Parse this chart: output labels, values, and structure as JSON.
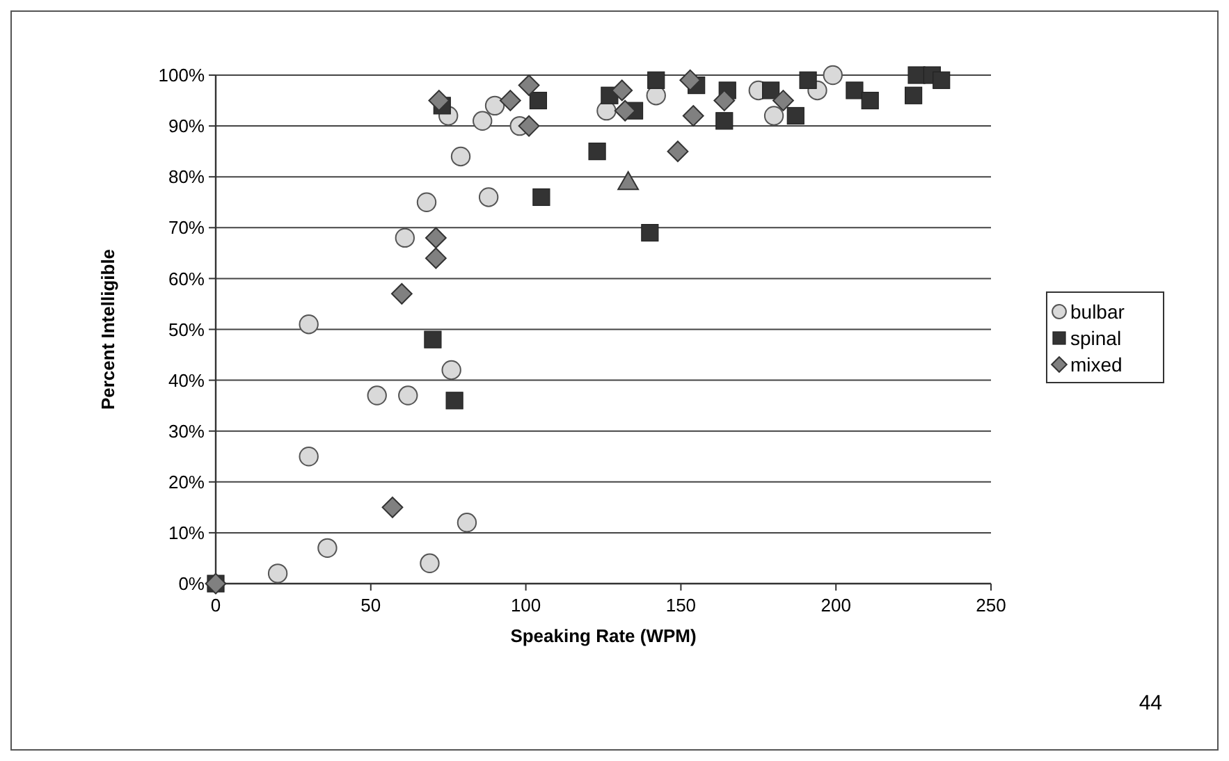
{
  "chart_data": {
    "type": "scatter",
    "xlabel": "Speaking Rate (WPM)",
    "ylabel": "Percent Intelligible",
    "xlim": [
      0,
      250
    ],
    "xticks": [
      0,
      50,
      100,
      150,
      200,
      250
    ],
    "ylim": [
      0,
      100
    ],
    "yticks": [
      {
        "value": 0,
        "label": "0%"
      },
      {
        "value": 10,
        "label": "10%"
      },
      {
        "value": 20,
        "label": "20%"
      },
      {
        "value": 30,
        "label": "30%"
      },
      {
        "value": 40,
        "label": "40%"
      },
      {
        "value": 50,
        "label": "50%"
      },
      {
        "value": 60,
        "label": "60%"
      },
      {
        "value": 70,
        "label": "70%"
      },
      {
        "value": 80,
        "label": "80%"
      },
      {
        "value": 90,
        "label": "90%"
      },
      {
        "value": 100,
        "label": "100%"
      }
    ],
    "grid": "y",
    "legend": "right",
    "annotations": [
      "44"
    ],
    "series": [
      {
        "name": "bulbar",
        "color": "#d9d9d9",
        "marker": "circle",
        "x": [
          20,
          30,
          30,
          36,
          52,
          62,
          61,
          68,
          69,
          76,
          81,
          75,
          79,
          86,
          88,
          90,
          98,
          126,
          142,
          175,
          180,
          194,
          199
        ],
        "values": [
          2,
          51,
          25,
          7,
          37,
          37,
          68,
          75,
          4,
          42,
          12,
          92,
          84,
          91,
          76,
          94,
          90,
          93,
          96,
          97,
          92,
          97,
          100
        ]
      },
      {
        "name": "spinal",
        "color": "#333333",
        "marker": "square",
        "x": [
          0,
          70,
          77,
          73,
          105,
          104,
          123,
          127,
          135,
          140,
          142,
          155,
          165,
          164,
          179,
          187,
          191,
          206,
          211,
          225,
          226,
          231,
          234
        ],
        "values": [
          0,
          48,
          36,
          94,
          76,
          95,
          85,
          96,
          93,
          69,
          99,
          98,
          97,
          91,
          97,
          92,
          99,
          97,
          95,
          96,
          100,
          100,
          99
        ]
      },
      {
        "name": "mixed",
        "color": "#808080",
        "marker": "diamond",
        "x": [
          0,
          57,
          60,
          71,
          71,
          72,
          95,
          101,
          101,
          131,
          132,
          149,
          153,
          154,
          164,
          183
        ],
        "values": [
          0,
          15,
          57,
          68,
          64,
          95,
          95,
          98,
          90,
          97,
          93,
          85,
          99,
          92,
          95,
          95
        ]
      },
      {
        "color": "#808080",
        "marker": "triangle",
        "x": [
          133
        ],
        "values": [
          79
        ]
      }
    ]
  }
}
